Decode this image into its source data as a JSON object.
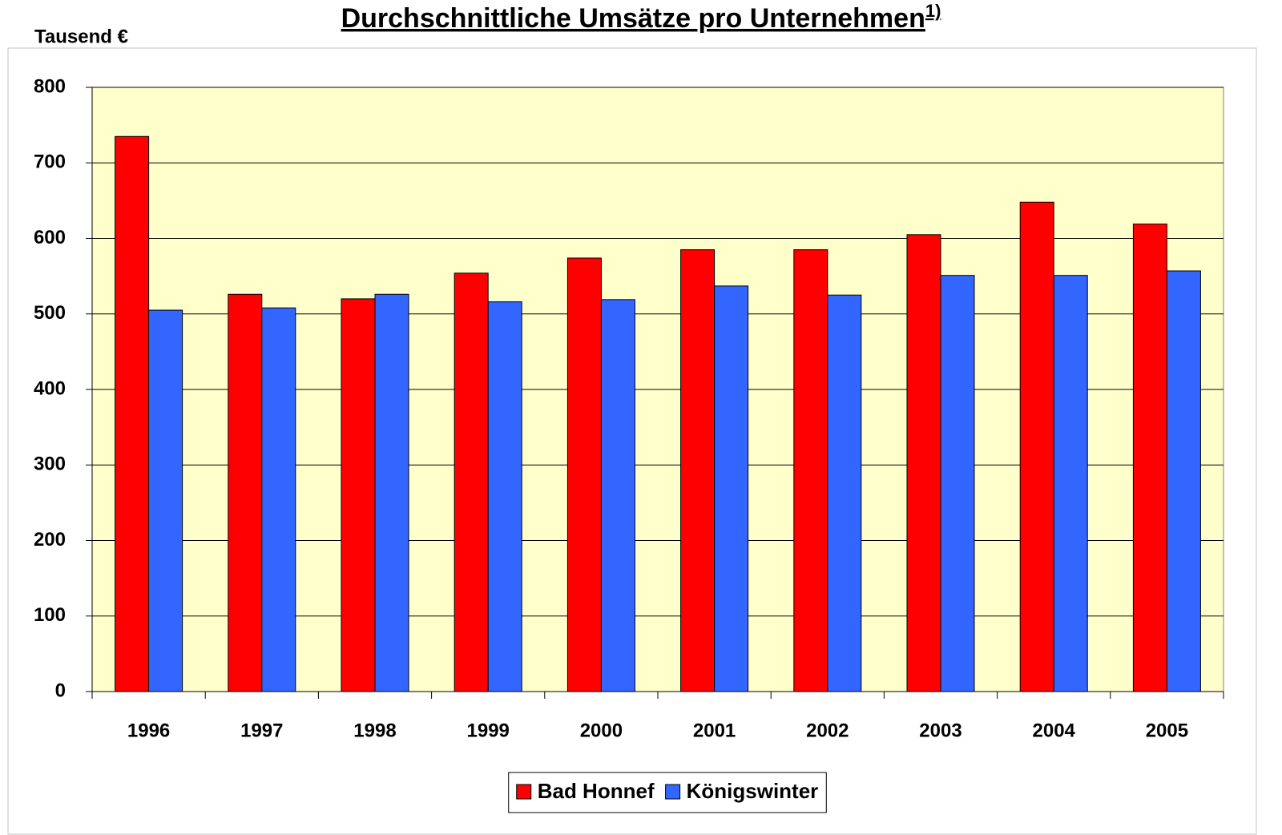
{
  "chart_data": {
    "type": "bar",
    "title": "Durchschnittliche Umsätze pro Unternehmen",
    "title_note": "1)",
    "y_label": "Tausend €",
    "categories": [
      "1996",
      "1997",
      "1998",
      "1999",
      "2000",
      "2001",
      "2002",
      "2003",
      "2004",
      "2005"
    ],
    "series": [
      {
        "name": "Bad Honnef",
        "color": "#ff0000",
        "values": [
          735,
          526,
          520,
          554,
          574,
          585,
          585,
          605,
          648,
          619
        ]
      },
      {
        "name": "Königswinter",
        "color": "#3366ff",
        "values": [
          505,
          508,
          526,
          516,
          519,
          537,
          525,
          551,
          551,
          557
        ]
      }
    ],
    "ylim": [
      0,
      800
    ],
    "yticks": [
      0,
      100,
      200,
      300,
      400,
      500,
      600,
      700,
      800
    ],
    "grid": true,
    "plot_background": "#ffffcc",
    "legend": "bottom"
  }
}
